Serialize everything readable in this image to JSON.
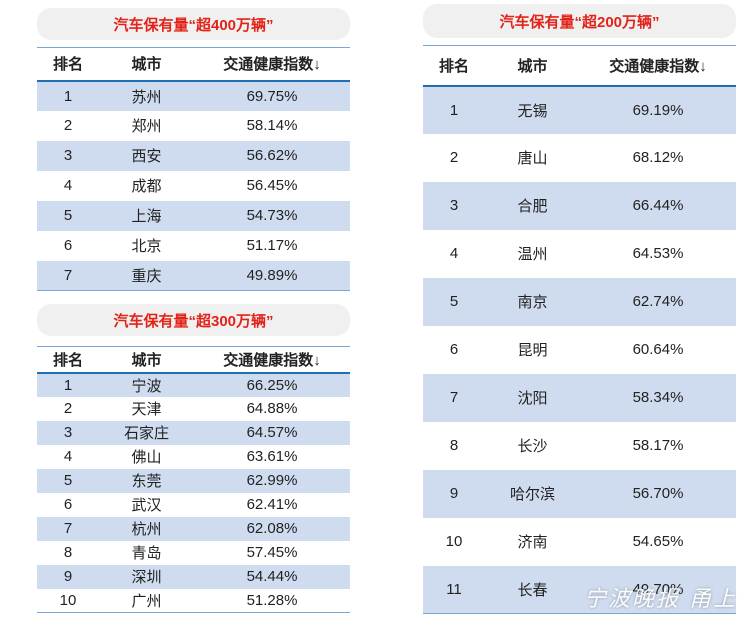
{
  "columns": {
    "rank": "排名",
    "city": "城市",
    "index": "交通健康指数↓"
  },
  "table400": {
    "title": "汽车保有量“超400万辆”",
    "rows": [
      {
        "rank": "1",
        "city": "苏州",
        "index": "69.75%"
      },
      {
        "rank": "2",
        "city": "郑州",
        "index": "58.14%"
      },
      {
        "rank": "3",
        "city": "西安",
        "index": "56.62%"
      },
      {
        "rank": "4",
        "city": "成都",
        "index": "56.45%"
      },
      {
        "rank": "5",
        "city": "上海",
        "index": "54.73%"
      },
      {
        "rank": "6",
        "city": "北京",
        "index": "51.17%"
      },
      {
        "rank": "7",
        "city": "重庆",
        "index": "49.89%"
      }
    ]
  },
  "table300": {
    "title": "汽车保有量“超300万辆”",
    "rows": [
      {
        "rank": "1",
        "city": "宁波",
        "index": "66.25%"
      },
      {
        "rank": "2",
        "city": "天津",
        "index": "64.88%"
      },
      {
        "rank": "3",
        "city": "石家庄",
        "index": "64.57%"
      },
      {
        "rank": "4",
        "city": "佛山",
        "index": "63.61%"
      },
      {
        "rank": "5",
        "city": "东莞",
        "index": "62.99%"
      },
      {
        "rank": "6",
        "city": "武汉",
        "index": "62.41%"
      },
      {
        "rank": "7",
        "city": "杭州",
        "index": "62.08%"
      },
      {
        "rank": "8",
        "city": "青岛",
        "index": "57.45%"
      },
      {
        "rank": "9",
        "city": "深圳",
        "index": "54.44%"
      },
      {
        "rank": "10",
        "city": "广州",
        "index": "51.28%"
      }
    ]
  },
  "table200": {
    "title": "汽车保有量“超200万辆”",
    "rows": [
      {
        "rank": "1",
        "city": "无锡",
        "index": "69.19%"
      },
      {
        "rank": "2",
        "city": "唐山",
        "index": "68.12%"
      },
      {
        "rank": "3",
        "city": "合肥",
        "index": "66.44%"
      },
      {
        "rank": "4",
        "city": "温州",
        "index": "64.53%"
      },
      {
        "rank": "5",
        "city": "南京",
        "index": "62.74%"
      },
      {
        "rank": "6",
        "city": "昆明",
        "index": "60.64%"
      },
      {
        "rank": "7",
        "city": "沈阳",
        "index": "58.34%"
      },
      {
        "rank": "8",
        "city": "长沙",
        "index": "58.17%"
      },
      {
        "rank": "9",
        "city": "哈尔滨",
        "index": "56.70%"
      },
      {
        "rank": "10",
        "city": "济南",
        "index": "54.65%"
      },
      {
        "rank": "11",
        "city": "长春",
        "index": "49.70%"
      }
    ]
  },
  "watermark": "宁波晚报 甬上",
  "colors": {
    "title_red": "#e2231a",
    "band_blue": "#cfdcef",
    "rule_blue": "#1f6fb5"
  }
}
